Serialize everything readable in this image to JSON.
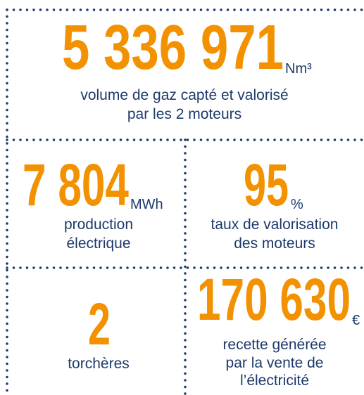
{
  "items": [
    {
      "value": "5 336 971",
      "unit": "Nm³",
      "lines": [
        "volume de gaz capté et valorisé",
        "par les 2 moteurs"
      ]
    },
    {
      "value": "7 804",
      "unit": "MWh",
      "lines": [
        "production",
        "électrique"
      ]
    },
    {
      "value": "95",
      "unit": "%",
      "lines": [
        "taux de valorisation",
        "des moteurs"
      ]
    },
    {
      "value": "2",
      "lines": [
        "torchères"
      ]
    },
    {
      "value": "170 630",
      "unit": "€",
      "lines": [
        "recette générée",
        "par la vente de",
        "l’électricité"
      ]
    }
  ]
}
